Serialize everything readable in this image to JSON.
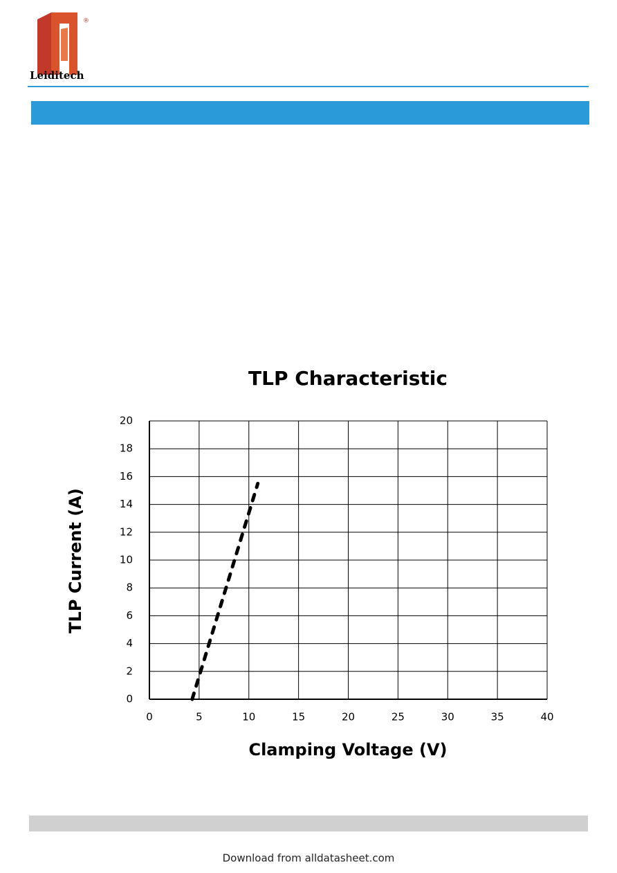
{
  "header": {
    "brand": "Leiditech",
    "registered": "®"
  },
  "footer": {
    "download": "Download from alldatasheet.com"
  },
  "chart_data": {
    "type": "line",
    "title": "TLP Characteristic",
    "x_label": "Clamping Voltage (V)",
    "y_label": "TLP Current (A)",
    "series": [
      {
        "name": "TLP",
        "color": "#000000",
        "linestyle": "dashed",
        "x": [
          4.3,
          10.9
        ],
        "values": [
          0,
          15.5
        ]
      }
    ],
    "xlim": [
      0,
      40
    ],
    "xticks": [
      0,
      5,
      10,
      15,
      20,
      25,
      30,
      35,
      40
    ],
    "ylim": [
      0,
      20
    ],
    "yticks": [
      0,
      2,
      4,
      6,
      8,
      10,
      12,
      14,
      16,
      18,
      20
    ],
    "grid": true
  }
}
